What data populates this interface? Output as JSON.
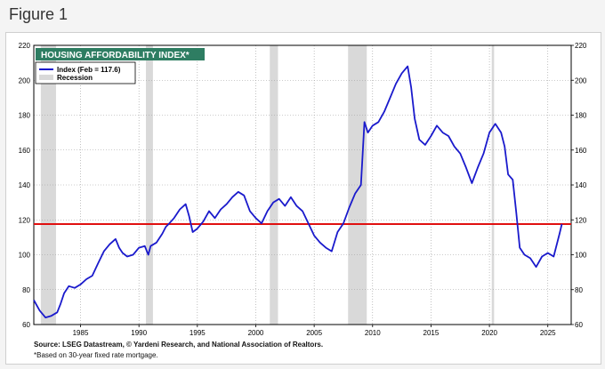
{
  "page": {
    "figure_label": "Figure 1"
  },
  "footer": {
    "source": "Source: LSEG Datastream, © Yardeni Research, and National Association of Realtors.",
    "note": "*Based on 30-year fixed rate mortgage."
  },
  "colors": {
    "line": "#1a1acc",
    "reference": "#e01010",
    "recession": "#d9d9d9",
    "title_box": "#2e7d62"
  },
  "chart_data": {
    "type": "line",
    "title": "HOUSING AFFORDABILITY INDEX*",
    "xlim": [
      1981,
      2027
    ],
    "ylim": [
      60,
      220
    ],
    "x_ticks": [
      1985,
      1990,
      1995,
      2000,
      2005,
      2010,
      2015,
      2020,
      2025
    ],
    "y_ticks": [
      60,
      80,
      100,
      120,
      140,
      160,
      180,
      200,
      220
    ],
    "grid": true,
    "legend": {
      "placement": "top-left",
      "entries": [
        "Index (Feb = 117.6)",
        "Recession"
      ]
    },
    "reference_line": {
      "y": 117.6
    },
    "recessions": [
      [
        1981.6,
        1982.9
      ],
      [
        1990.6,
        1991.2
      ],
      [
        2001.2,
        2001.9
      ],
      [
        2007.9,
        2009.5
      ],
      [
        2020.2,
        2020.4
      ]
    ],
    "series": [
      {
        "name": "Index (Feb = 117.6)",
        "points": [
          [
            1981.0,
            74
          ],
          [
            1981.5,
            68
          ],
          [
            1982.0,
            64
          ],
          [
            1982.5,
            65
          ],
          [
            1983.0,
            67
          ],
          [
            1983.3,
            72
          ],
          [
            1983.6,
            78
          ],
          [
            1984.0,
            82
          ],
          [
            1984.5,
            81
          ],
          [
            1985.0,
            83
          ],
          [
            1985.5,
            86
          ],
          [
            1986.0,
            88
          ],
          [
            1986.5,
            95
          ],
          [
            1987.0,
            102
          ],
          [
            1987.5,
            106
          ],
          [
            1988.0,
            109
          ],
          [
            1988.3,
            104
          ],
          [
            1988.6,
            101
          ],
          [
            1989.0,
            99
          ],
          [
            1989.5,
            100
          ],
          [
            1990.0,
            104
          ],
          [
            1990.5,
            105
          ],
          [
            1990.8,
            100
          ],
          [
            1991.0,
            105
          ],
          [
            1991.5,
            107
          ],
          [
            1992.0,
            112
          ],
          [
            1992.3,
            116
          ],
          [
            1992.6,
            118
          ],
          [
            1993.0,
            121
          ],
          [
            1993.5,
            126
          ],
          [
            1994.0,
            129
          ],
          [
            1994.3,
            122
          ],
          [
            1994.6,
            113
          ],
          [
            1995.0,
            115
          ],
          [
            1995.5,
            119
          ],
          [
            1996.0,
            125
          ],
          [
            1996.5,
            121
          ],
          [
            1997.0,
            126
          ],
          [
            1997.5,
            129
          ],
          [
            1998.0,
            133
          ],
          [
            1998.5,
            136
          ],
          [
            1999.0,
            134
          ],
          [
            1999.5,
            125
          ],
          [
            2000.0,
            121
          ],
          [
            2000.5,
            118
          ],
          [
            2001.0,
            125
          ],
          [
            2001.5,
            130
          ],
          [
            2002.0,
            132
          ],
          [
            2002.5,
            128
          ],
          [
            2003.0,
            133
          ],
          [
            2003.5,
            128
          ],
          [
            2004.0,
            125
          ],
          [
            2004.5,
            118
          ],
          [
            2005.0,
            111
          ],
          [
            2005.5,
            107
          ],
          [
            2006.0,
            104
          ],
          [
            2006.5,
            102
          ],
          [
            2007.0,
            113
          ],
          [
            2007.5,
            118
          ],
          [
            2008.0,
            127
          ],
          [
            2008.5,
            135
          ],
          [
            2009.0,
            140
          ],
          [
            2009.3,
            176
          ],
          [
            2009.6,
            170
          ],
          [
            2010.0,
            174
          ],
          [
            2010.5,
            176
          ],
          [
            2011.0,
            182
          ],
          [
            2011.5,
            190
          ],
          [
            2012.0,
            198
          ],
          [
            2012.5,
            204
          ],
          [
            2013.0,
            208
          ],
          [
            2013.3,
            196
          ],
          [
            2013.6,
            178
          ],
          [
            2014.0,
            166
          ],
          [
            2014.5,
            163
          ],
          [
            2015.0,
            168
          ],
          [
            2015.5,
            174
          ],
          [
            2016.0,
            170
          ],
          [
            2016.5,
            168
          ],
          [
            2017.0,
            162
          ],
          [
            2017.5,
            158
          ],
          [
            2018.0,
            150
          ],
          [
            2018.5,
            141
          ],
          [
            2019.0,
            150
          ],
          [
            2019.5,
            158
          ],
          [
            2020.0,
            170
          ],
          [
            2020.5,
            175
          ],
          [
            2021.0,
            170
          ],
          [
            2021.3,
            162
          ],
          [
            2021.6,
            146
          ],
          [
            2022.0,
            143
          ],
          [
            2022.3,
            124
          ],
          [
            2022.6,
            104
          ],
          [
            2023.0,
            100
          ],
          [
            2023.5,
            98
          ],
          [
            2024.0,
            93
          ],
          [
            2024.5,
            99
          ],
          [
            2025.0,
            101
          ],
          [
            2025.5,
            99
          ],
          [
            2026.0,
            112
          ],
          [
            2026.2,
            117.6
          ]
        ]
      }
    ]
  }
}
